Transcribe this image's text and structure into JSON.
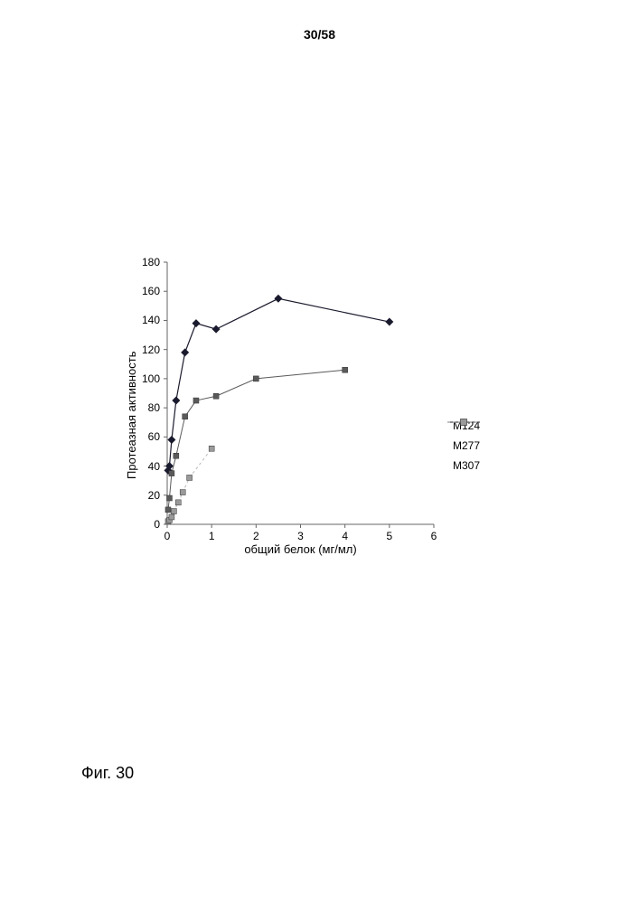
{
  "page_number": "30/58",
  "figure_label": "Фиг. 30",
  "chart": {
    "type": "line",
    "xlabel": "общий белок (мг/мл)",
    "ylabel": "Протеазная активность",
    "xlim": [
      0,
      6
    ],
    "ylim": [
      0,
      180
    ],
    "xtick_step": 1,
    "ytick_step": 20,
    "xticks": [
      "0",
      "1",
      "2",
      "3",
      "4",
      "5",
      "6"
    ],
    "yticks": [
      "0",
      "20",
      "40",
      "60",
      "80",
      "100",
      "120",
      "140",
      "160",
      "180"
    ],
    "background_color": "#ffffff",
    "axis_color": "#666666",
    "tick_color": "#666666",
    "label_fontsize": 13,
    "tick_fontsize": 12,
    "series": [
      {
        "name": "M124",
        "marker": "diamond",
        "marker_size": 7,
        "line_color": "#1a1a2e",
        "marker_color": "#1a1a2e",
        "line_width": 1.2,
        "points": [
          {
            "x": 0.02,
            "y": 37
          },
          {
            "x": 0.05,
            "y": 40
          },
          {
            "x": 0.1,
            "y": 58
          },
          {
            "x": 0.2,
            "y": 85
          },
          {
            "x": 0.4,
            "y": 118
          },
          {
            "x": 0.65,
            "y": 138
          },
          {
            "x": 1.1,
            "y": 134
          },
          {
            "x": 2.5,
            "y": 155
          },
          {
            "x": 5.0,
            "y": 139
          }
        ]
      },
      {
        "name": "M277",
        "marker": "square",
        "marker_size": 6,
        "line_color": "#5a5a5a",
        "marker_color": "#5a5a5a",
        "line_width": 1.0,
        "points": [
          {
            "x": 0.02,
            "y": 10
          },
          {
            "x": 0.05,
            "y": 18
          },
          {
            "x": 0.1,
            "y": 35
          },
          {
            "x": 0.2,
            "y": 47
          },
          {
            "x": 0.4,
            "y": 74
          },
          {
            "x": 0.65,
            "y": 85
          },
          {
            "x": 1.1,
            "y": 88
          },
          {
            "x": 2.0,
            "y": 100
          },
          {
            "x": 4.0,
            "y": 106
          }
        ]
      },
      {
        "name": "M307",
        "marker": "square",
        "marker_size": 6,
        "line_color": "#bababa",
        "marker_color": "#9a9a9a",
        "line_width": 1.0,
        "dash": "3,3",
        "points": [
          {
            "x": 0.02,
            "y": 2
          },
          {
            "x": 0.05,
            "y": 3
          },
          {
            "x": 0.1,
            "y": 5
          },
          {
            "x": 0.15,
            "y": 9
          },
          {
            "x": 0.25,
            "y": 15
          },
          {
            "x": 0.35,
            "y": 22
          },
          {
            "x": 0.5,
            "y": 32
          },
          {
            "x": 1.0,
            "y": 52
          }
        ]
      }
    ],
    "legend": {
      "position": "right",
      "items": [
        "M124",
        "M277",
        "M307"
      ]
    }
  }
}
